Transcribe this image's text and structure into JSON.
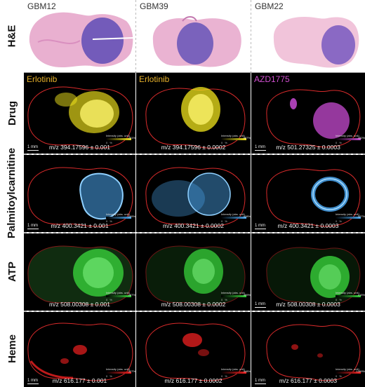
{
  "columns": [
    "GBM12",
    "GBM39",
    "GBM22"
  ],
  "rows": [
    "H&E",
    "Drug",
    "Palmitoylcarnitine",
    "ATP",
    "Heme"
  ],
  "drug_labels": [
    {
      "text": "Erlotinib",
      "color": "#e8b22b"
    },
    {
      "text": "Erlotinib",
      "color": "#e8b22b"
    },
    {
      "text": "AZD1775",
      "color": "#d14fd1"
    }
  ],
  "mz": {
    "drug": [
      "m/z 394.17596 ± 0.001",
      "m/z 394.17596 ± 0.0002",
      "m/z 501.27325 ± 0.0003"
    ],
    "palmitoylcarnitine": [
      "m/z 400.3421 ± 0.001",
      "m/z 400.3421 ± 0.0002",
      "m/z 400.3421 ± 0.0003"
    ],
    "atp": [
      "m/z 508.00308 ± 0.001",
      "m/z 508.00308 ± 0.0002",
      "m/z 508.00308 ± 0.0003"
    ],
    "heme": [
      "m/z 616.177 ± 0.001",
      "m/z 616.177 ± 0.0002",
      "m/z 616.177 ± 0.0003"
    ]
  },
  "scalebar": "1 mm",
  "intensity_label": "Intensity (abs. unit)",
  "colorbar_max": {
    "drug": [
      "751%",
      "587%",
      "282%"
    ],
    "palmitoylcarnitine": [
      "109%",
      "428%",
      "327%"
    ],
    "atp": [
      "287%",
      "399%",
      "215%"
    ],
    "heme": [
      "327%",
      "348%",
      "1399%"
    ]
  },
  "colorbar_min": "0%",
  "colors": {
    "drug_cols": [
      "#f2e51c",
      "#f2e51c",
      "#c74bd2"
    ],
    "palmitoylcarnitine": "#4ba6ee",
    "atp": "#37d13a",
    "heme": "#ee2020",
    "outline": "#d92b2b",
    "he_tissue": "#eab3d2",
    "he_tumor": "#6f56b7"
  }
}
